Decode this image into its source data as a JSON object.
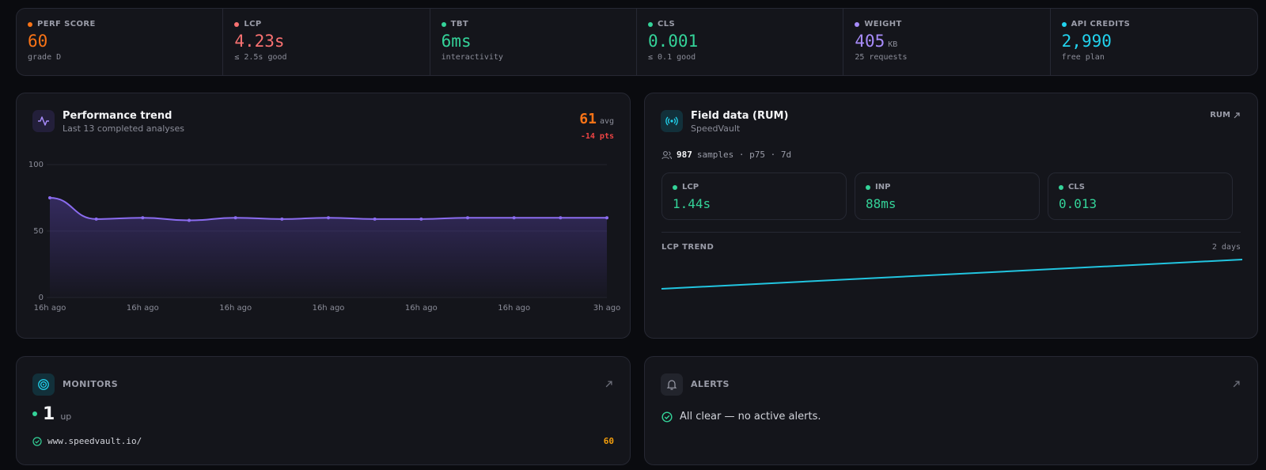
{
  "stats": [
    {
      "label": "PERF SCORE",
      "value": "60",
      "sub": "grade D",
      "color": "#f97316"
    },
    {
      "label": "LCP",
      "value": "4.23s",
      "sub": "≤ 2.5s good",
      "color": "#f87171"
    },
    {
      "label": "TBT",
      "value": "6ms",
      "sub": "interactivity",
      "color": "#34d399"
    },
    {
      "label": "CLS",
      "value": "0.001",
      "sub": "≤ 0.1 good",
      "color": "#34d399"
    },
    {
      "label": "WEIGHT",
      "value": "405",
      "unit": "KB",
      "sub": "25 requests",
      "color": "#a78bfa"
    },
    {
      "label": "API CREDITS",
      "value": "2,990",
      "sub": "free plan",
      "color": "#22d3ee"
    }
  ],
  "trend": {
    "title": "Performance trend",
    "subtitle": "Last 13 completed analyses",
    "avg": "61",
    "avg_label": "avg",
    "delta": "-14 pts",
    "chart": {
      "type": "line",
      "categories": [
        "16h ago",
        null,
        "16h ago",
        null,
        "16h ago",
        null,
        "16h ago",
        null,
        "16h ago",
        null,
        "16h ago",
        null,
        "3h ago"
      ],
      "values": [
        75,
        59,
        60,
        58,
        60,
        59,
        60,
        59,
        59,
        60,
        60,
        60,
        60
      ],
      "color": "#8b6cf0",
      "ylim": [
        0,
        100
      ],
      "yticks": [
        0,
        50,
        100
      ],
      "grid": true
    }
  },
  "field": {
    "title": "Field data (RUM)",
    "subtitle": "SpeedVault",
    "link": "RUM",
    "samples": "987",
    "samples_meta": "samples · p75 · 7d",
    "metrics": [
      {
        "label": "LCP",
        "value": "1.44s",
        "color": "#34d399"
      },
      {
        "label": "INP",
        "value": "88ms",
        "color": "#34d399"
      },
      {
        "label": "CLS",
        "value": "0.013",
        "color": "#34d399"
      }
    ],
    "trend_label": "LCP TREND",
    "trend_range": "2 days"
  },
  "monitors": {
    "title": "MONITORS",
    "count": "1",
    "count_label": "up",
    "site": "www.speedvault.io/",
    "score": "60"
  },
  "alerts": {
    "title": "ALERTS",
    "message": "All clear — no active alerts."
  }
}
